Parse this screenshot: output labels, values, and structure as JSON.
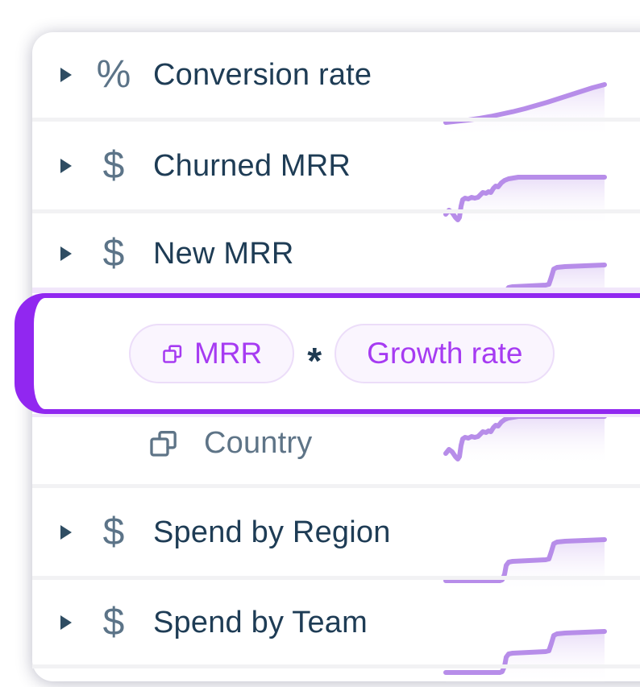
{
  "list": {
    "rows": [
      {
        "label": "Conversion rate",
        "icon": "percent",
        "spark": "smooth",
        "expandable": true
      },
      {
        "label": "Churned MRR",
        "icon": "dollar",
        "spark": "wiggle",
        "expandable": true
      },
      {
        "label": "New MRR",
        "icon": "dollar",
        "spark": "steps",
        "expandable": true
      },
      {
        "label": "Country",
        "icon": "copy",
        "spark": "wiggle",
        "expandable": false
      },
      {
        "label": "Spend by Region",
        "icon": "dollar",
        "spark": "steps",
        "expandable": true
      },
      {
        "label": "Spend by Team",
        "icon": "dollar",
        "spark": "steps",
        "expandable": true
      }
    ]
  },
  "icon_glyphs": {
    "percent": "%",
    "dollar": "$"
  },
  "formula_editor": {
    "operand_left": "MRR",
    "operator": "*",
    "operand_right": "Growth rate"
  },
  "colors": {
    "accent_purple": "#9127F0",
    "spark_purple": "#B78DE9",
    "spark_fill_top": "#E9DDF8",
    "chip_text": "#A63BF2",
    "chip_bg": "#FAF5FE",
    "chip_border": "#ECDDF9",
    "label_text": "#1E3C55",
    "muted_text": "#5E7487",
    "icon_slate": "#5C7488",
    "separator": "#F2F2F4",
    "lavender_stripe": "#F1E6FA"
  },
  "sparklines": {
    "smooth": {
      "shape": "smooth exponential rise",
      "points": [
        [
          0,
          50
        ],
        [
          14,
          48.5
        ],
        [
          28,
          47
        ],
        [
          42,
          45
        ],
        [
          56,
          42.5
        ],
        [
          70,
          39.5
        ],
        [
          84,
          36.5
        ],
        [
          98,
          33
        ],
        [
          112,
          29
        ],
        [
          126,
          25
        ],
        [
          140,
          20.5
        ],
        [
          154,
          16
        ],
        [
          168,
          11.5
        ],
        [
          182,
          7
        ],
        [
          197,
          3
        ]
      ]
    },
    "wiggle": {
      "shape": "noisy dip then rise to plateau",
      "points": [
        [
          0,
          54
        ],
        [
          4,
          49
        ],
        [
          8,
          52
        ],
        [
          12,
          58
        ],
        [
          15,
          61
        ],
        [
          17,
          58
        ],
        [
          19,
          44
        ],
        [
          21,
          36
        ],
        [
          24,
          34
        ],
        [
          28,
          35
        ],
        [
          32,
          33
        ],
        [
          36,
          34
        ],
        [
          40,
          33
        ],
        [
          43,
          30
        ],
        [
          46,
          27
        ],
        [
          50,
          28
        ],
        [
          53,
          26
        ],
        [
          56,
          27
        ],
        [
          59,
          22
        ],
        [
          62,
          19
        ],
        [
          65,
          20
        ],
        [
          69,
          15
        ],
        [
          73,
          12
        ],
        [
          78,
          10
        ],
        [
          84,
          9
        ],
        [
          90,
          8
        ],
        [
          197,
          8
        ]
      ]
    },
    "steps": {
      "shape": "three rising steps",
      "points": [
        [
          0,
          54
        ],
        [
          67,
          54
        ],
        [
          70,
          53
        ],
        [
          73,
          46
        ],
        [
          75,
          35
        ],
        [
          78,
          31
        ],
        [
          83,
          30
        ],
        [
          124,
          28
        ],
        [
          128,
          27
        ],
        [
          131,
          18
        ],
        [
          134,
          8
        ],
        [
          138,
          6
        ],
        [
          148,
          5
        ],
        [
          197,
          3
        ]
      ]
    }
  }
}
